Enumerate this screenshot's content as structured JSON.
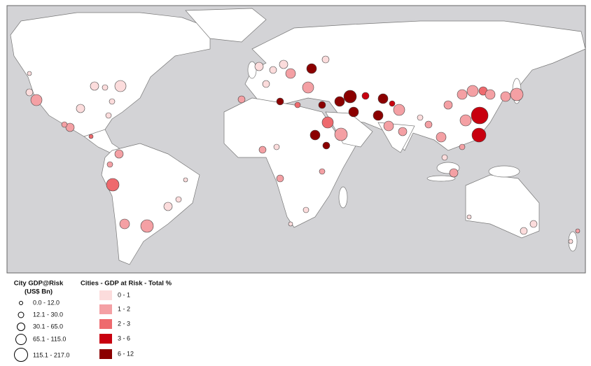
{
  "legend_size": {
    "title": [
      "City GDP@Risk",
      "(US$ Bn)"
    ],
    "items": [
      "0.0 - 12.0",
      "12.1 - 30.0",
      "30.1 - 65.0",
      "65.1 - 115.0",
      "115.1 - 217.0"
    ]
  },
  "legend_color": {
    "title": "Cities - GDP at Risk - Total %",
    "items": [
      "0 - 1",
      "1 - 2",
      "2 - 3",
      "3 - 6",
      "6 - 12"
    ]
  }
}
